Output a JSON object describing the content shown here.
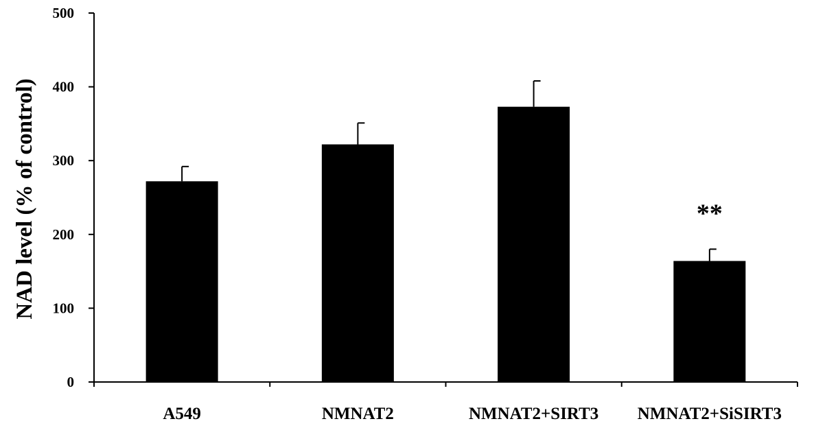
{
  "chart_data": {
    "type": "bar",
    "title": "",
    "xlabel": "",
    "ylabel": "NAD level (% of control)",
    "categories": [
      "A549",
      "NMNAT2",
      "NMNAT2+SIRT3",
      "NMNAT2+SiSIRT3"
    ],
    "values": [
      272,
      322,
      373,
      164
    ],
    "errors": [
      20,
      29,
      35,
      16
    ],
    "annotations": [
      "",
      "",
      "",
      "**"
    ],
    "ylim": [
      0,
      500
    ],
    "yticks": [
      "0",
      "100",
      "200",
      "300",
      "400",
      "500"
    ],
    "grid": false,
    "legend": "none",
    "bar_color": "#000000"
  }
}
